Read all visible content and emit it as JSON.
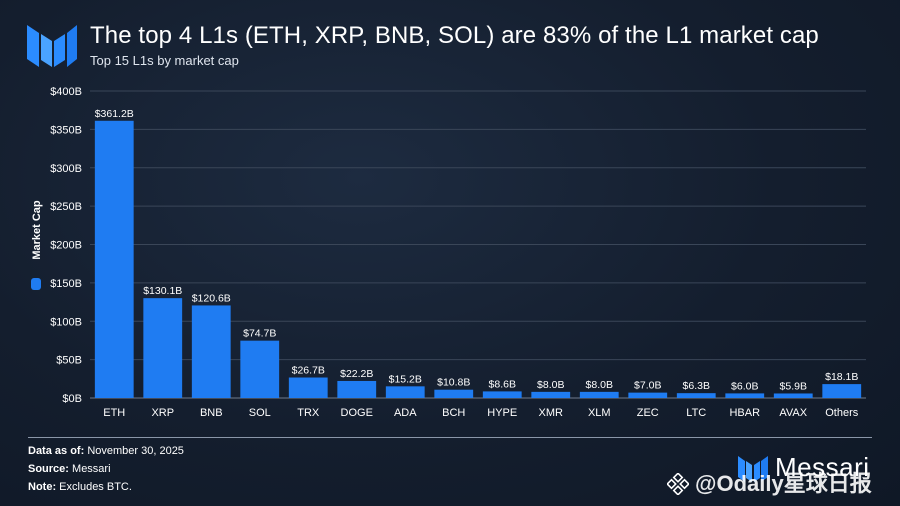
{
  "header": {
    "title": "The top 4 L1s (ETH, XRP, BNB, SOL) are 83% of the L1 market cap",
    "subtitle": "Top 15 L1s by market cap"
  },
  "chart_data": {
    "type": "bar",
    "title": "The top 4 L1s (ETH, XRP, BNB, SOL) are 83% of the L1 market cap",
    "subtitle": "Top 15 L1s by market cap",
    "ylabel": "Market Cap",
    "xlabel": "",
    "ylim": [
      0,
      400
    ],
    "yticks": [
      0,
      50,
      100,
      150,
      200,
      250,
      300,
      350,
      400
    ],
    "ytick_labels": [
      "$0B",
      "$50B",
      "$100B",
      "$150B",
      "$200B",
      "$250B",
      "$300B",
      "$350B",
      "$400B"
    ],
    "grid": true,
    "legend": "left",
    "categories": [
      "ETH",
      "XRP",
      "BNB",
      "SOL",
      "TRX",
      "DOGE",
      "ADA",
      "BCH",
      "HYPE",
      "XMR",
      "XLM",
      "ZEC",
      "LTC",
      "HBAR",
      "AVAX",
      "Others"
    ],
    "values": [
      361.2,
      130.1,
      120.6,
      74.7,
      26.7,
      22.2,
      15.2,
      10.8,
      8.6,
      8.0,
      8.0,
      7.0,
      6.3,
      6.0,
      5.9,
      18.1
    ],
    "value_labels": [
      "$361.2B",
      "$130.1B",
      "$120.6B",
      "$74.7B",
      "$26.7B",
      "$22.2B",
      "$15.2B",
      "$10.8B",
      "$8.6B",
      "$8.0B",
      "$8.0B",
      "$7.0B",
      "$6.3B",
      "$6.0B",
      "$5.9B",
      "$18.1B"
    ],
    "bar_color": "#1f7cf2"
  },
  "footer": {
    "date_label": "Data as of:",
    "date_value": "November 30, 2025",
    "source_label": "Source:",
    "source_value": "Messari",
    "note_label": "Note:",
    "note_value": "Excludes BTC."
  },
  "brand": {
    "name": "Messari"
  },
  "watermark": {
    "text": "@Odaily星球日报"
  },
  "colors": {
    "background": "#141e2e",
    "bar": "#1f7cf2",
    "grid": "#3a4658"
  }
}
